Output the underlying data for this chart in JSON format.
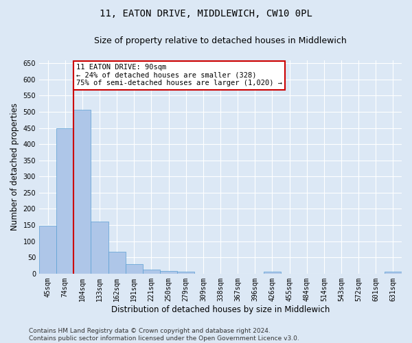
{
  "title": "11, EATON DRIVE, MIDDLEWICH, CW10 0PL",
  "subtitle": "Size of property relative to detached houses in Middlewich",
  "xlabel": "Distribution of detached houses by size in Middlewich",
  "ylabel": "Number of detached properties",
  "categories": [
    "45sqm",
    "74sqm",
    "104sqm",
    "133sqm",
    "162sqm",
    "191sqm",
    "221sqm",
    "250sqm",
    "279sqm",
    "309sqm",
    "338sqm",
    "367sqm",
    "396sqm",
    "426sqm",
    "455sqm",
    "484sqm",
    "514sqm",
    "543sqm",
    "572sqm",
    "601sqm",
    "631sqm"
  ],
  "values": [
    148,
    450,
    507,
    160,
    68,
    30,
    13,
    9,
    5,
    0,
    0,
    0,
    0,
    6,
    0,
    0,
    0,
    0,
    0,
    0,
    5
  ],
  "bar_color": "#aec6e8",
  "bar_edge_color": "#5a9fd4",
  "vline_x": 1.5,
  "vline_color": "#cc0000",
  "annotation_text": "11 EATON DRIVE: 90sqm\n← 24% of detached houses are smaller (328)\n75% of semi-detached houses are larger (1,020) →",
  "annotation_box_color": "#ffffff",
  "annotation_box_edge_color": "#cc0000",
  "ylim": [
    0,
    660
  ],
  "yticks": [
    0,
    50,
    100,
    150,
    200,
    250,
    300,
    350,
    400,
    450,
    500,
    550,
    600,
    650
  ],
  "background_color": "#dce8f5",
  "grid_color": "#ffffff",
  "footer_text": "Contains HM Land Registry data © Crown copyright and database right 2024.\nContains public sector information licensed under the Open Government Licence v3.0.",
  "title_fontsize": 10,
  "subtitle_fontsize": 9,
  "xlabel_fontsize": 8.5,
  "ylabel_fontsize": 8.5,
  "tick_fontsize": 7,
  "annotation_fontsize": 7.5,
  "footer_fontsize": 6.5
}
